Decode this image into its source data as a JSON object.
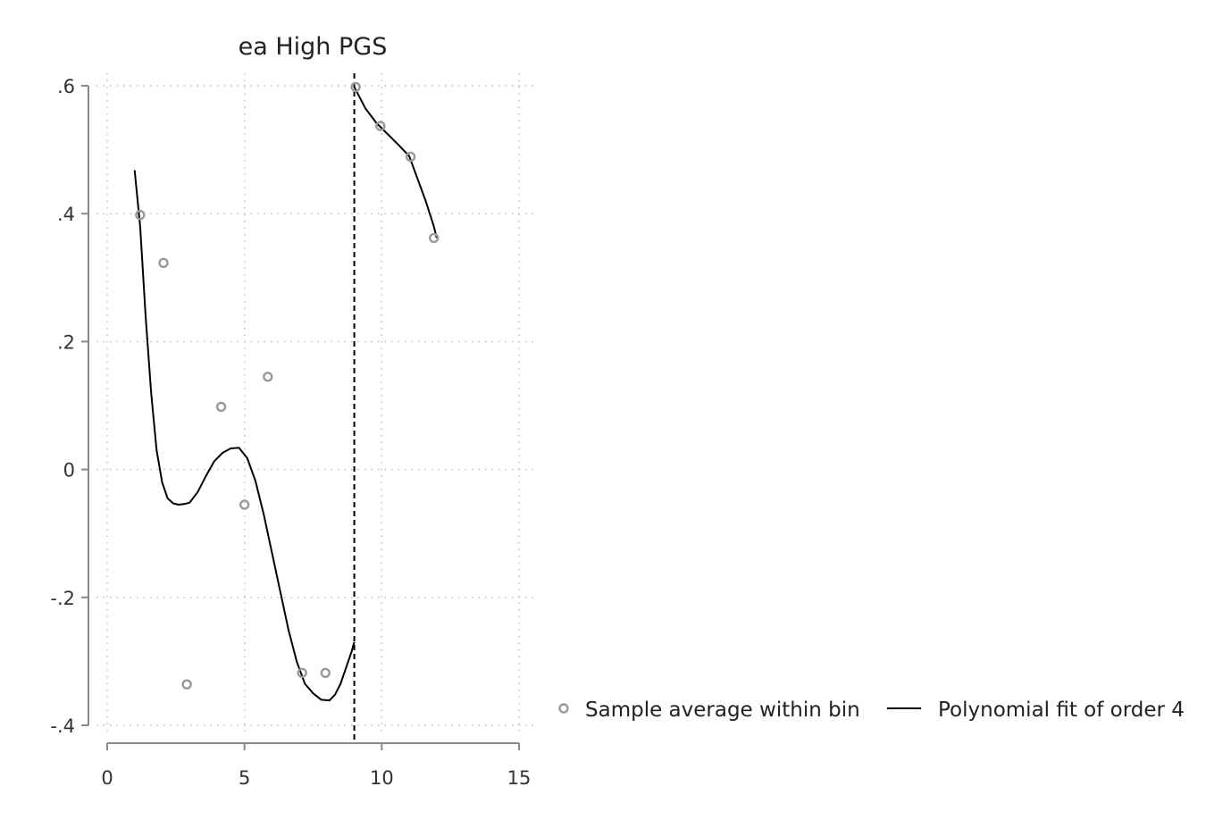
{
  "chart_data": {
    "type": "scatter",
    "title": "ea High PGS",
    "xlabel": "",
    "ylabel": "",
    "xlim": [
      0,
      15
    ],
    "ylim": [
      -0.4,
      0.6
    ],
    "xticks": [
      0,
      5,
      10,
      15
    ],
    "xtick_labels": [
      "0",
      "5",
      "10",
      "15"
    ],
    "yticks": [
      0.6,
      0.4,
      0.2,
      0,
      -0.2,
      -0.4
    ],
    "ytick_labels": [
      ".6",
      ".4",
      ".2",
      "0",
      "-.2",
      "-.4"
    ],
    "grid": true,
    "cutoff": 9,
    "legend_position": "right",
    "legend": [
      "Sample average within bin",
      "Polynomial fit of order 4"
    ],
    "colors": {
      "scatter": "#999999",
      "fit": "#000000",
      "axis": "#888888",
      "grid": "#bbbbbb"
    },
    "series": [
      {
        "name": "Sample average within bin",
        "kind": "scatter",
        "x": [
          1.2,
          2.05,
          2.9,
          4.15,
          5.0,
          5.85,
          7.1,
          7.95,
          9.05,
          9.95,
          11.05,
          11.9
        ],
        "y": [
          0.398,
          0.323,
          -0.336,
          0.098,
          -0.055,
          0.145,
          -0.318,
          -0.318,
          0.598,
          0.537,
          0.489,
          0.362
        ]
      },
      {
        "name": "Polynomial fit of order 4",
        "kind": "line",
        "segments": [
          {
            "x": [
              1.0,
              1.2,
              1.4,
              1.6,
              1.8,
              2.0,
              2.2,
              2.4,
              2.6,
              2.8,
              3.0,
              3.3,
              3.6,
              3.9,
              4.2,
              4.5,
              4.8,
              5.1,
              5.4,
              5.7,
              6.0,
              6.3,
              6.6,
              6.9,
              7.2,
              7.5,
              7.8,
              8.1,
              8.3,
              8.5,
              8.7,
              8.9,
              9.0
            ],
            "y": [
              0.468,
              0.38,
              0.24,
              0.12,
              0.03,
              -0.02,
              -0.045,
              -0.053,
              -0.055,
              -0.054,
              -0.052,
              -0.035,
              -0.01,
              0.013,
              0.026,
              0.033,
              0.034,
              0.018,
              -0.018,
              -0.07,
              -0.13,
              -0.19,
              -0.25,
              -0.3,
              -0.335,
              -0.35,
              -0.36,
              -0.361,
              -0.352,
              -0.335,
              -0.31,
              -0.285,
              -0.27
            ]
          },
          {
            "x": [
              9.0,
              9.4,
              9.8,
              10.2,
              10.6,
              11.0,
              11.3,
              11.6,
              11.9,
              12.0
            ],
            "y": [
              0.598,
              0.565,
              0.542,
              0.525,
              0.508,
              0.49,
              0.455,
              0.42,
              0.38,
              0.362
            ]
          }
        ]
      }
    ]
  }
}
